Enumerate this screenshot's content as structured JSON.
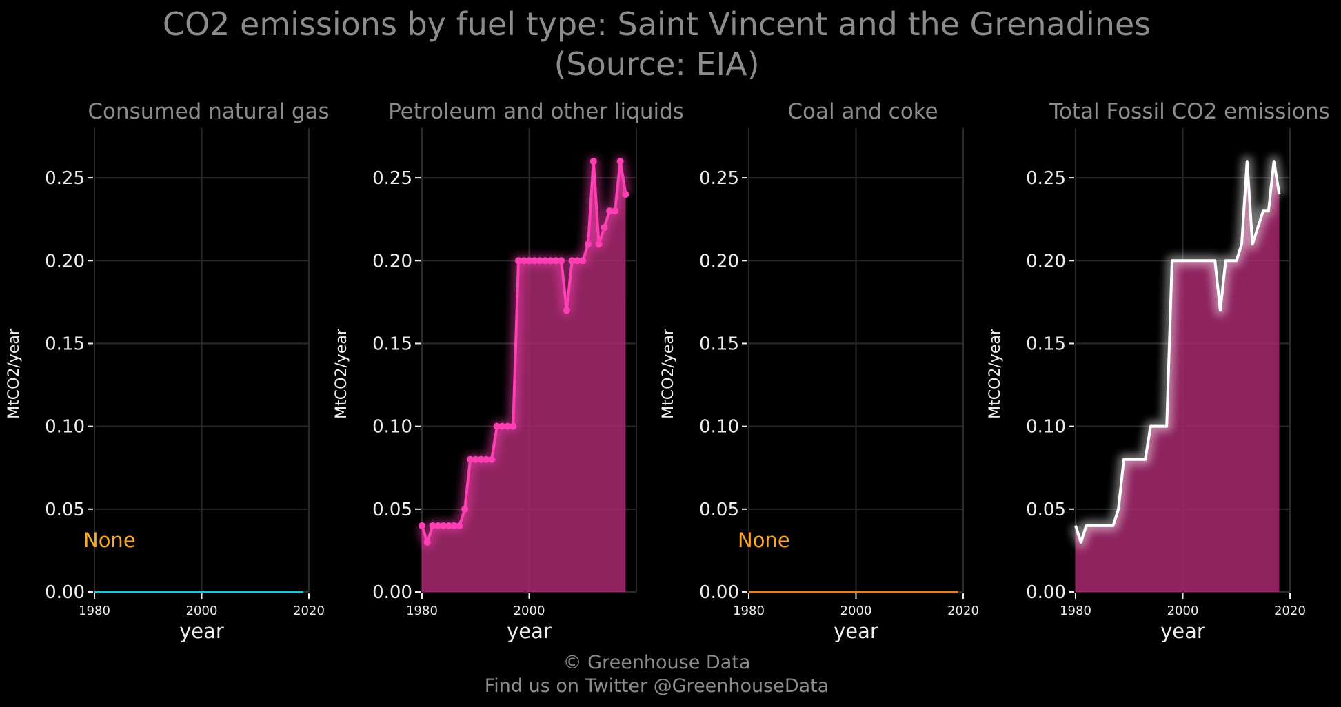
{
  "title": {
    "line1": "CO2 emissions by fuel type: Saint Vincent and the Grenadines",
    "line2": "(Source: EIA)"
  },
  "footer": {
    "line1": "© Greenhouse Data",
    "line2": "Find us on Twitter @GreenhouseData"
  },
  "colors": {
    "background": "#000000",
    "grid": "#2a2a2a",
    "text": "#eeeeee",
    "title": "#8c8c8c",
    "none_label": "#ffa726",
    "gas": "#26c6da",
    "petroleum": "#ff3fb4",
    "coal": "#e67e22",
    "total": "#ffffff",
    "fill": "#a3286c"
  },
  "chart_data": [
    {
      "type": "line",
      "title": "Consumed natural gas",
      "xlabel": "year",
      "ylabel": "MtCO2/year",
      "xlim": [
        1980,
        2020
      ],
      "ylim": [
        0,
        0.28
      ],
      "xticks": [
        1980,
        2000,
        2020
      ],
      "yticks": [
        0.0,
        0.05,
        0.1,
        0.15,
        0.2,
        0.25
      ],
      "grid": true,
      "annotation": "None",
      "series": [
        {
          "color_key": "gas",
          "x": [
            1980,
            2019
          ],
          "values": [
            0,
            0
          ]
        }
      ]
    },
    {
      "type": "area",
      "title": "Petroleum and other liquids",
      "xlabel": "year",
      "ylabel": "MtCO2/year",
      "xlim": [
        1980,
        2020
      ],
      "ylim": [
        0,
        0.28
      ],
      "xticks": [
        1980,
        2000
      ],
      "yticks": [
        0.0,
        0.05,
        0.1,
        0.15,
        0.2,
        0.25
      ],
      "grid": true,
      "markers": true,
      "series": [
        {
          "color_key": "petroleum",
          "x": [
            1980,
            1981,
            1982,
            1983,
            1984,
            1985,
            1986,
            1987,
            1988,
            1989,
            1990,
            1991,
            1992,
            1993,
            1994,
            1995,
            1996,
            1997,
            1998,
            1999,
            2000,
            2001,
            2002,
            2003,
            2004,
            2005,
            2006,
            2007,
            2008,
            2009,
            2010,
            2011,
            2012,
            2013,
            2014,
            2015,
            2016,
            2017,
            2018
          ],
          "values": [
            0.04,
            0.03,
            0.04,
            0.04,
            0.04,
            0.04,
            0.04,
            0.04,
            0.05,
            0.08,
            0.08,
            0.08,
            0.08,
            0.08,
            0.1,
            0.1,
            0.1,
            0.1,
            0.2,
            0.2,
            0.2,
            0.2,
            0.2,
            0.2,
            0.2,
            0.2,
            0.2,
            0.17,
            0.2,
            0.2,
            0.2,
            0.21,
            0.26,
            0.21,
            0.22,
            0.23,
            0.23,
            0.26,
            0.24
          ]
        }
      ]
    },
    {
      "type": "line",
      "title": "Coal and coke",
      "xlabel": "year",
      "ylabel": "MtCO2/year",
      "xlim": [
        1980,
        2020
      ],
      "ylim": [
        0,
        0.28
      ],
      "xticks": [
        1980,
        2000,
        2020
      ],
      "yticks": [
        0.0,
        0.05,
        0.1,
        0.15,
        0.2,
        0.25
      ],
      "grid": true,
      "annotation": "None",
      "series": [
        {
          "color_key": "coal",
          "x": [
            1980,
            2019
          ],
          "values": [
            0,
            0
          ]
        }
      ]
    },
    {
      "type": "area",
      "title": "Total Fossil CO2 emissions",
      "xlabel": "year",
      "ylabel": "MtCO2/year",
      "xlim": [
        1980,
        2020
      ],
      "ylim": [
        0,
        0.28
      ],
      "xticks": [
        1980,
        2000,
        2020
      ],
      "yticks": [
        0.0,
        0.05,
        0.1,
        0.15,
        0.2,
        0.25
      ],
      "grid": true,
      "markers": false,
      "series": [
        {
          "color_key": "total",
          "x": [
            1980,
            1981,
            1982,
            1983,
            1984,
            1985,
            1986,
            1987,
            1988,
            1989,
            1990,
            1991,
            1992,
            1993,
            1994,
            1995,
            1996,
            1997,
            1998,
            1999,
            2000,
            2001,
            2002,
            2003,
            2004,
            2005,
            2006,
            2007,
            2008,
            2009,
            2010,
            2011,
            2012,
            2013,
            2014,
            2015,
            2016,
            2017,
            2018
          ],
          "values": [
            0.04,
            0.03,
            0.04,
            0.04,
            0.04,
            0.04,
            0.04,
            0.04,
            0.05,
            0.08,
            0.08,
            0.08,
            0.08,
            0.08,
            0.1,
            0.1,
            0.1,
            0.1,
            0.2,
            0.2,
            0.2,
            0.2,
            0.2,
            0.2,
            0.2,
            0.2,
            0.2,
            0.17,
            0.2,
            0.2,
            0.2,
            0.21,
            0.26,
            0.21,
            0.22,
            0.23,
            0.23,
            0.26,
            0.24
          ]
        }
      ]
    }
  ]
}
